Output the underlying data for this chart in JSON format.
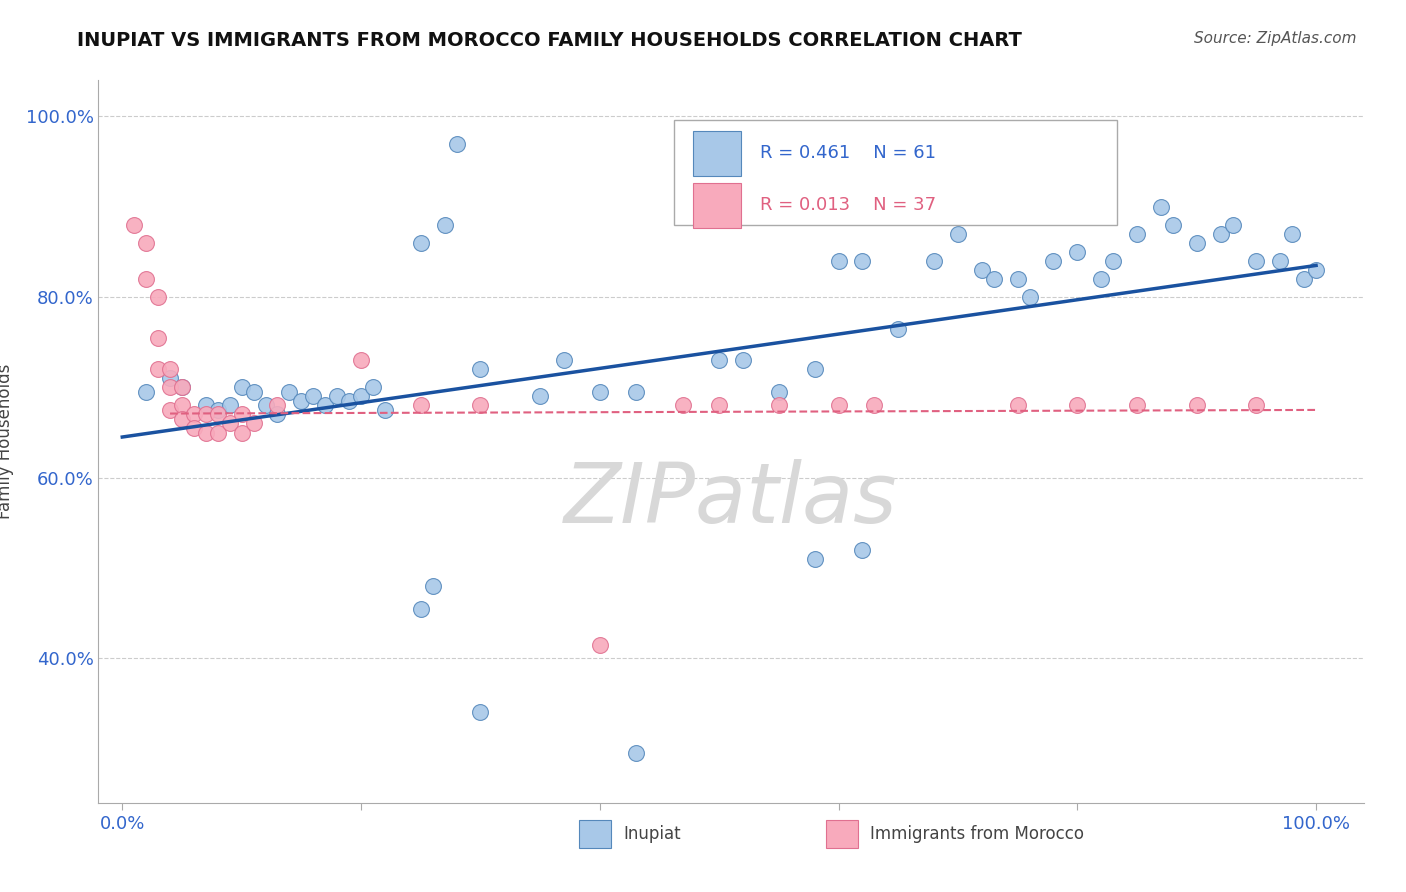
{
  "title": "INUPIAT VS IMMIGRANTS FROM MOROCCO FAMILY HOUSEHOLDS CORRELATION CHART",
  "source": "Source: ZipAtlas.com",
  "ylabel": "Family Households",
  "xlim": [
    -0.02,
    1.04
  ],
  "ylim": [
    0.24,
    1.04
  ],
  "y_ticks": [
    0.4,
    0.6,
    0.8,
    1.0
  ],
  "y_tick_labels": [
    "40.0%",
    "60.0%",
    "80.0%",
    "100.0%"
  ],
  "x_ticks": [
    0.0,
    1.0
  ],
  "x_tick_labels": [
    "0.0%",
    "100.0%"
  ],
  "title_fontsize": 14,
  "source_fontsize": 11,
  "tick_fontsize": 13,
  "blue_face": "#A8C8E8",
  "blue_edge": "#5588BB",
  "pink_face": "#F8AABC",
  "pink_edge": "#E07090",
  "blue_line_color": "#1A52A0",
  "pink_line_color": "#E06080",
  "watermark_color": "#D8D8D8",
  "grid_color": "#CCCCCC",
  "inupiat_x": [
    0.02,
    0.04,
    0.05,
    0.07,
    0.08,
    0.09,
    0.1,
    0.11,
    0.12,
    0.13,
    0.14,
    0.15,
    0.16,
    0.17,
    0.18,
    0.19,
    0.2,
    0.21,
    0.22,
    0.25,
    0.27,
    0.28,
    0.3,
    0.35,
    0.37,
    0.4,
    0.43,
    0.5,
    0.52,
    0.55,
    0.58,
    0.6,
    0.62,
    0.65,
    0.68,
    0.7,
    0.72,
    0.73,
    0.75,
    0.76,
    0.78,
    0.8,
    0.82,
    0.83,
    0.85,
    0.87,
    0.88,
    0.9,
    0.92,
    0.93,
    0.95,
    0.97,
    0.98,
    0.99,
    1.0,
    0.25,
    0.26,
    0.58,
    0.62,
    0.3,
    0.43
  ],
  "inupiat_y": [
    0.695,
    0.71,
    0.7,
    0.68,
    0.675,
    0.68,
    0.7,
    0.695,
    0.68,
    0.67,
    0.695,
    0.685,
    0.69,
    0.68,
    0.69,
    0.685,
    0.69,
    0.7,
    0.675,
    0.86,
    0.88,
    0.97,
    0.72,
    0.69,
    0.73,
    0.695,
    0.695,
    0.73,
    0.73,
    0.695,
    0.72,
    0.84,
    0.84,
    0.765,
    0.84,
    0.87,
    0.83,
    0.82,
    0.82,
    0.8,
    0.84,
    0.85,
    0.82,
    0.84,
    0.87,
    0.9,
    0.88,
    0.86,
    0.87,
    0.88,
    0.84,
    0.84,
    0.87,
    0.82,
    0.83,
    0.455,
    0.48,
    0.51,
    0.52,
    0.34,
    0.295
  ],
  "morocco_x": [
    0.01,
    0.02,
    0.02,
    0.03,
    0.03,
    0.03,
    0.04,
    0.04,
    0.04,
    0.05,
    0.05,
    0.05,
    0.06,
    0.06,
    0.07,
    0.07,
    0.08,
    0.08,
    0.09,
    0.1,
    0.1,
    0.11,
    0.13,
    0.2,
    0.25,
    0.3,
    0.4,
    0.5,
    0.6,
    0.75,
    0.8,
    0.85,
    0.9,
    0.95,
    0.47,
    0.55,
    0.63
  ],
  "morocco_y": [
    0.88,
    0.86,
    0.82,
    0.8,
    0.755,
    0.72,
    0.72,
    0.7,
    0.675,
    0.7,
    0.68,
    0.665,
    0.67,
    0.655,
    0.67,
    0.65,
    0.67,
    0.65,
    0.66,
    0.67,
    0.65,
    0.66,
    0.68,
    0.73,
    0.68,
    0.68,
    0.415,
    0.68,
    0.68,
    0.68,
    0.68,
    0.68,
    0.68,
    0.68,
    0.68,
    0.68,
    0.68
  ],
  "blue_line_x0": 0.0,
  "blue_line_x1": 1.0,
  "blue_line_y0": 0.645,
  "blue_line_y1": 0.835,
  "pink_line_x0": 0.04,
  "pink_line_x1": 1.0,
  "pink_line_y0": 0.671,
  "pink_line_y1": 0.675
}
